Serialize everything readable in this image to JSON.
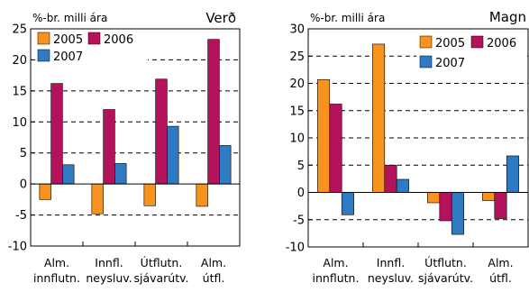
{
  "colors": {
    "s2005": "#f7931e",
    "s2006": "#b5125c",
    "s2007": "#2e7bc3",
    "frame": "#000000",
    "grid": "#000000"
  },
  "chart_data": [
    {
      "type": "bar",
      "title": "Verð",
      "ylabel": "%-br. milli ára",
      "ylim": [
        -10,
        25
      ],
      "yticks": [
        -10,
        -5,
        0,
        5,
        10,
        15,
        20,
        25
      ],
      "grid": "dashed",
      "legend_position": "top-left",
      "categories": [
        [
          "Alm.",
          "innflutn."
        ],
        [
          "Innfl.",
          "neysluv."
        ],
        [
          "Útflutn.",
          "sjávarútv."
        ],
        [
          "Alm.",
          "útfl."
        ]
      ],
      "series": [
        {
          "name": "2005",
          "values": [
            -2.5,
            -4.8,
            -3.5,
            -3.6
          ]
        },
        {
          "name": "2006",
          "values": [
            16.2,
            12.0,
            16.9,
            23.3
          ]
        },
        {
          "name": "2007",
          "values": [
            3.1,
            3.3,
            9.3,
            6.2
          ]
        }
      ]
    },
    {
      "type": "bar",
      "title": "Magn",
      "ylabel": "%-br. milli ára",
      "ylim": [
        -10,
        30
      ],
      "yticks": [
        -10,
        -5,
        0,
        5,
        10,
        15,
        20,
        25,
        30
      ],
      "grid": "dashed",
      "legend_position": "top-right",
      "categories": [
        [
          "Alm.",
          "innflutn."
        ],
        [
          "Innfl.",
          "neysluv."
        ],
        [
          "Útflutn.",
          "sjávarútv."
        ],
        [
          "Alm.",
          "útfl."
        ]
      ],
      "series": [
        {
          "name": "2005",
          "values": [
            20.7,
            27.2,
            -1.9,
            -1.5
          ]
        },
        {
          "name": "2006",
          "values": [
            16.2,
            5.0,
            -5.2,
            -4.8
          ]
        },
        {
          "name": "2007",
          "values": [
            -4.1,
            2.4,
            -7.7,
            6.7
          ]
        }
      ]
    }
  ]
}
